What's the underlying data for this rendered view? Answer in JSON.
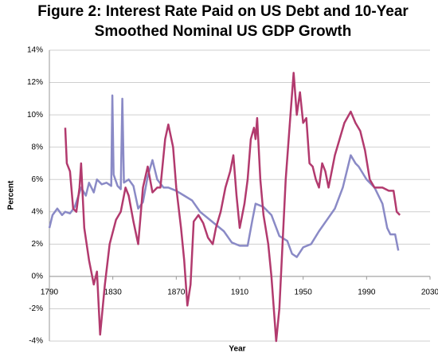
{
  "chart_data": {
    "type": "line",
    "title": "Figure 2: Interest Rate Paid on US Debt and 10-Year Smoothed Nominal US GDP Growth",
    "xlabel": "Year",
    "ylabel": "Percent",
    "xlim": [
      1790,
      2030
    ],
    "xticks": [
      1790,
      1830,
      1870,
      1910,
      1950,
      1990,
      2030
    ],
    "ylim": [
      -4,
      14
    ],
    "yticks": [
      {
        "value": -4,
        "label": "-4%"
      },
      {
        "value": -2,
        "label": "-2%"
      },
      {
        "value": 0,
        "label": "0%"
      },
      {
        "value": 2,
        "label": "2%"
      },
      {
        "value": 4,
        "label": "4%"
      },
      {
        "value": 6,
        "label": "6%"
      },
      {
        "value": 8,
        "label": "8%"
      },
      {
        "value": 10,
        "label": "10%"
      },
      {
        "value": 12,
        "label": "12%"
      },
      {
        "value": 14,
        "label": "14%"
      }
    ],
    "grid": true,
    "series": [
      {
        "color": "#8a8ac6",
        "x": [
          1790,
          1792,
          1795,
          1798,
          1800,
          1803,
          1806,
          1810,
          1813,
          1815,
          1818,
          1820,
          1823,
          1826,
          1829,
          1829.7,
          1830.5,
          1833,
          1835,
          1836,
          1837,
          1840,
          1843,
          1846,
          1849,
          1852,
          1855,
          1858,
          1862,
          1865,
          1870,
          1875,
          1880,
          1885,
          1890,
          1895,
          1900,
          1905,
          1910,
          1915,
          1918,
          1920,
          1925,
          1930,
          1935,
          1940,
          1943,
          1946,
          1950,
          1955,
          1960,
          1965,
          1970,
          1975,
          1980,
          1983,
          1985,
          1990,
          1995,
          2000,
          2003,
          2005,
          2008,
          2010
        ],
        "values": [
          3,
          3.8,
          4.2,
          3.8,
          4,
          3.9,
          4.3,
          5.5,
          5,
          5.8,
          5.2,
          6,
          5.7,
          5.8,
          5.6,
          11.2,
          6.3,
          5.6,
          5.4,
          11,
          5.8,
          6,
          5.6,
          4.2,
          4.6,
          6.2,
          7.2,
          6,
          5.5,
          5.5,
          5.3,
          5,
          4.7,
          4,
          3.6,
          3.2,
          2.8,
          2.1,
          1.9,
          1.9,
          3.5,
          4.5,
          4.3,
          3.8,
          2.5,
          2.2,
          1.4,
          1.2,
          1.8,
          2,
          2.8,
          3.5,
          4.2,
          5.5,
          7.5,
          7,
          6.8,
          6,
          5.5,
          4.5,
          3,
          2.6,
          2.6,
          1.6
        ]
      },
      {
        "color": "#b23a6e",
        "x": [
          1800,
          1801,
          1803,
          1805,
          1807,
          1809,
          1810,
          1812,
          1815,
          1818,
          1820,
          1822,
          1825,
          1828,
          1832,
          1835,
          1838,
          1840,
          1843,
          1846,
          1849,
          1852,
          1855,
          1858,
          1860,
          1863,
          1865,
          1868,
          1870,
          1873,
          1875,
          1877,
          1879,
          1881,
          1884,
          1887,
          1890,
          1893,
          1895,
          1898,
          1901,
          1904,
          1906,
          1908,
          1910,
          1913,
          1915,
          1917,
          1919,
          1920,
          1921,
          1923,
          1925,
          1928,
          1930,
          1933,
          1935,
          1937,
          1939,
          1942,
          1944,
          1946,
          1948,
          1950,
          1952,
          1954,
          1956,
          1958,
          1960,
          1962,
          1964,
          1966,
          1968,
          1970,
          1973,
          1976,
          1980,
          1983,
          1986,
          1989,
          1992,
          1995,
          2000,
          2004,
          2007,
          2009,
          2011
        ],
        "values": [
          9.2,
          7,
          6.5,
          4.2,
          4,
          5.5,
          7,
          3,
          1,
          -0.5,
          0.3,
          -3.6,
          -0.5,
          2,
          3.5,
          4,
          5.5,
          5,
          3.4,
          2,
          5.5,
          6.8,
          5.2,
          5.5,
          5.5,
          8.5,
          9.4,
          8,
          5.5,
          3,
          1,
          -1.8,
          -0.5,
          3.4,
          3.8,
          3.3,
          2.4,
          2,
          3,
          4,
          5.5,
          6.5,
          7.5,
          5,
          3,
          4.5,
          6,
          8.5,
          9.2,
          8.5,
          9.8,
          6,
          3.8,
          2,
          0,
          -4,
          -2,
          2,
          6,
          10,
          12.6,
          10,
          11.4,
          9.5,
          9.8,
          7,
          6.8,
          6,
          5.5,
          7,
          6.5,
          5.5,
          6.5,
          7.5,
          8.5,
          9.5,
          10.2,
          9.5,
          9,
          7.8,
          6,
          5.5,
          5.5,
          5.3,
          5.3,
          4,
          3.8
        ]
      }
    ]
  }
}
